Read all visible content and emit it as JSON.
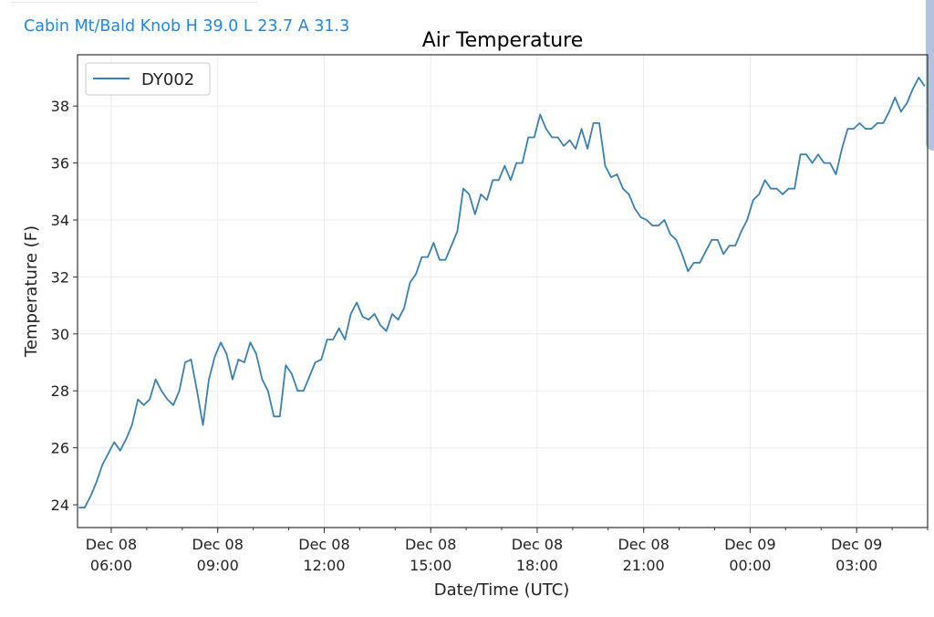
{
  "header": {
    "station_summary": "Cabin Mt/Bald Knob H 39.0 L 23.7 A 31.3"
  },
  "colors": {
    "series": "#3a80b0",
    "station_text": "#1e88e5",
    "grid": "#ebebeb"
  },
  "chart_data": {
    "type": "line",
    "title": "Air Temperature",
    "xlabel": "Date/Time (UTC)",
    "ylabel": "Temperature (F)",
    "ylim": [
      23.2,
      39.8
    ],
    "xlim": [
      "Dec 08 05:03",
      "Dec 09 05:00"
    ],
    "grid": true,
    "legend": "top-left",
    "yticks": [
      24,
      26,
      28,
      30,
      32,
      34,
      36,
      38
    ],
    "xticks": [
      {
        "date": "Dec 08",
        "time": "06:00"
      },
      {
        "date": "Dec 08",
        "time": "09:00"
      },
      {
        "date": "Dec 08",
        "time": "12:00"
      },
      {
        "date": "Dec 08",
        "time": "15:00"
      },
      {
        "date": "Dec 08",
        "time": "18:00"
      },
      {
        "date": "Dec 08",
        "time": "21:00"
      },
      {
        "date": "Dec 09",
        "time": "00:00"
      },
      {
        "date": "Dec 09",
        "time": "03:00"
      }
    ],
    "x": [
      "Dec 08 05:05",
      "Dec 08 05:15",
      "Dec 08 05:25",
      "Dec 08 05:35",
      "Dec 08 05:45",
      "Dec 08 05:55",
      "Dec 08 06:05",
      "Dec 08 06:15",
      "Dec 08 06:25",
      "Dec 08 06:35",
      "Dec 08 06:45",
      "Dec 08 06:55",
      "Dec 08 07:05",
      "Dec 08 07:15",
      "Dec 08 07:25",
      "Dec 08 07:35",
      "Dec 08 07:45",
      "Dec 08 07:55",
      "Dec 08 08:05",
      "Dec 08 08:15",
      "Dec 08 08:25",
      "Dec 08 08:35",
      "Dec 08 08:45",
      "Dec 08 08:55",
      "Dec 08 09:05",
      "Dec 08 09:15",
      "Dec 08 09:25",
      "Dec 08 09:35",
      "Dec 08 09:45",
      "Dec 08 09:55",
      "Dec 08 10:05",
      "Dec 08 10:15",
      "Dec 08 10:25",
      "Dec 08 10:35",
      "Dec 08 10:45",
      "Dec 08 10:55",
      "Dec 08 11:05",
      "Dec 08 11:15",
      "Dec 08 11:25",
      "Dec 08 11:35",
      "Dec 08 11:45",
      "Dec 08 11:55",
      "Dec 08 12:05",
      "Dec 08 12:15",
      "Dec 08 12:25",
      "Dec 08 12:35",
      "Dec 08 12:45",
      "Dec 08 12:55",
      "Dec 08 13:05",
      "Dec 08 13:15",
      "Dec 08 13:25",
      "Dec 08 13:35",
      "Dec 08 13:45",
      "Dec 08 13:55",
      "Dec 08 14:05",
      "Dec 08 14:15",
      "Dec 08 14:25",
      "Dec 08 14:35",
      "Dec 08 14:45",
      "Dec 08 14:55",
      "Dec 08 15:05",
      "Dec 08 15:15",
      "Dec 08 15:25",
      "Dec 08 15:35",
      "Dec 08 15:45",
      "Dec 08 15:55",
      "Dec 08 16:05",
      "Dec 08 16:15",
      "Dec 08 16:25",
      "Dec 08 16:35",
      "Dec 08 16:45",
      "Dec 08 16:55",
      "Dec 08 17:05",
      "Dec 08 17:15",
      "Dec 08 17:25",
      "Dec 08 17:35",
      "Dec 08 17:45",
      "Dec 08 17:55",
      "Dec 08 18:05",
      "Dec 08 18:15",
      "Dec 08 18:25",
      "Dec 08 18:35",
      "Dec 08 18:45",
      "Dec 08 18:55",
      "Dec 08 19:05",
      "Dec 08 19:15",
      "Dec 08 19:25",
      "Dec 08 19:35",
      "Dec 08 19:45",
      "Dec 08 19:55",
      "Dec 08 20:05",
      "Dec 08 20:15",
      "Dec 08 20:25",
      "Dec 08 20:35",
      "Dec 08 20:45",
      "Dec 08 20:55",
      "Dec 08 21:05",
      "Dec 08 21:15",
      "Dec 08 21:25",
      "Dec 08 21:35",
      "Dec 08 21:45",
      "Dec 08 21:55",
      "Dec 08 22:05",
      "Dec 08 22:15",
      "Dec 08 22:25",
      "Dec 08 22:35",
      "Dec 08 22:45",
      "Dec 08 22:55",
      "Dec 08 23:05",
      "Dec 08 23:15",
      "Dec 08 23:25",
      "Dec 08 23:35",
      "Dec 08 23:45",
      "Dec 08 23:55",
      "Dec 09 00:05",
      "Dec 09 00:15",
      "Dec 09 00:25",
      "Dec 09 00:35",
      "Dec 09 00:45",
      "Dec 09 00:55",
      "Dec 09 01:05",
      "Dec 09 01:15",
      "Dec 09 01:25",
      "Dec 09 01:35",
      "Dec 09 01:45",
      "Dec 09 01:55",
      "Dec 09 02:05",
      "Dec 09 02:15",
      "Dec 09 02:25",
      "Dec 09 02:35",
      "Dec 09 02:45",
      "Dec 09 02:55",
      "Dec 09 03:05",
      "Dec 09 03:15",
      "Dec 09 03:25",
      "Dec 09 03:35",
      "Dec 09 03:45",
      "Dec 09 03:55",
      "Dec 09 04:05",
      "Dec 09 04:15",
      "Dec 09 04:25",
      "Dec 09 04:35",
      "Dec 09 04:45",
      "Dec 09 04:55"
    ],
    "series": [
      {
        "name": "DY002",
        "values": [
          23.9,
          23.9,
          24.3,
          24.8,
          25.4,
          25.8,
          26.2,
          25.9,
          26.3,
          26.8,
          27.7,
          27.5,
          27.7,
          28.4,
          28.0,
          27.7,
          27.5,
          28.0,
          29.0,
          29.1,
          28.0,
          26.8,
          28.4,
          29.2,
          29.7,
          29.3,
          28.4,
          29.1,
          29.0,
          29.7,
          29.3,
          28.4,
          28.0,
          27.1,
          27.1,
          28.9,
          28.6,
          28.0,
          28.0,
          28.5,
          29.0,
          29.1,
          29.8,
          29.8,
          30.2,
          29.8,
          30.7,
          31.1,
          30.6,
          30.5,
          30.7,
          30.3,
          30.1,
          30.7,
          30.5,
          30.9,
          31.8,
          32.1,
          32.7,
          32.7,
          33.2,
          32.6,
          32.6,
          33.1,
          33.6,
          35.1,
          34.9,
          34.2,
          34.9,
          34.7,
          35.4,
          35.4,
          35.9,
          35.4,
          36.0,
          36.0,
          36.9,
          36.9,
          37.7,
          37.2,
          36.9,
          36.9,
          36.6,
          36.8,
          36.5,
          37.2,
          36.5,
          37.4,
          37.4,
          35.9,
          35.5,
          35.6,
          35.1,
          34.9,
          34.4,
          34.1,
          34.0,
          33.8,
          33.8,
          34.0,
          33.5,
          33.3,
          32.8,
          32.2,
          32.5,
          32.5,
          32.9,
          33.3,
          33.3,
          32.8,
          33.1,
          33.1,
          33.6,
          34.0,
          34.7,
          34.9,
          35.4,
          35.1,
          35.1,
          34.9,
          35.1,
          35.1,
          36.3,
          36.3,
          36.0,
          36.3,
          36.0,
          36.0,
          35.6,
          36.5,
          37.2,
          37.2,
          37.4,
          37.2,
          37.2,
          37.4,
          37.4,
          37.8,
          38.3,
          37.8,
          38.1,
          38.6,
          39.0,
          38.7
        ]
      }
    ]
  }
}
